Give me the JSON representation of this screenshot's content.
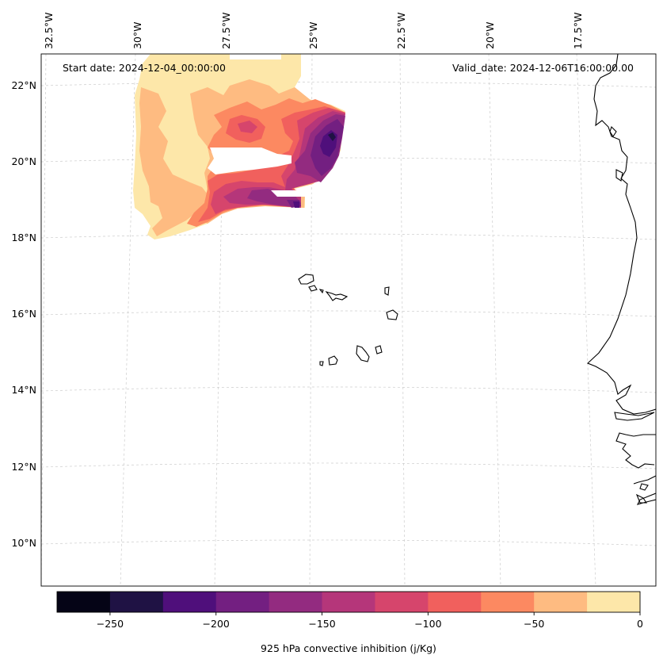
{
  "header": {
    "start_date": "Start date: 2024-12-04_00:00:00",
    "valid_date": "Valid_date: 2024-12-06T16:00:00.00"
  },
  "longitude_labels": [
    "32.5°W",
    "30°W",
    "27.5°W",
    "25°W",
    "22.5°W",
    "20°W",
    "17.5°W"
  ],
  "latitude_labels": [
    "22°N",
    "20°N",
    "18°N",
    "16°N",
    "14°N",
    "12°N",
    "10°N"
  ],
  "colorbar": {
    "label": "925 hPa convective inhibition (j/Kg)",
    "ticks": [
      "−250",
      "−200",
      "−150",
      "−100",
      "−50",
      "0"
    ],
    "levels": [
      -275,
      -250,
      -225,
      -200,
      -175,
      -150,
      -125,
      -100,
      -75,
      -50,
      -25,
      0
    ],
    "colors": [
      "#050416",
      "#1f1244",
      "#4f0f7b",
      "#731f81",
      "#932b80",
      "#b5367a",
      "#d6456c",
      "#f1605d",
      "#fc8961",
      "#febb81",
      "#fde7a9"
    ]
  },
  "chart_data": {
    "type": "filled-contour-map",
    "variable": "925 hPa convective inhibition",
    "units": "j/Kg",
    "colorbar_range": [
      -275,
      0
    ],
    "lon_range_deg": [
      -32.5,
      -15.7
    ],
    "lat_range_deg": [
      8.9,
      22.8
    ],
    "observed_min_approx": -225,
    "observed_max_approx": 0
  }
}
